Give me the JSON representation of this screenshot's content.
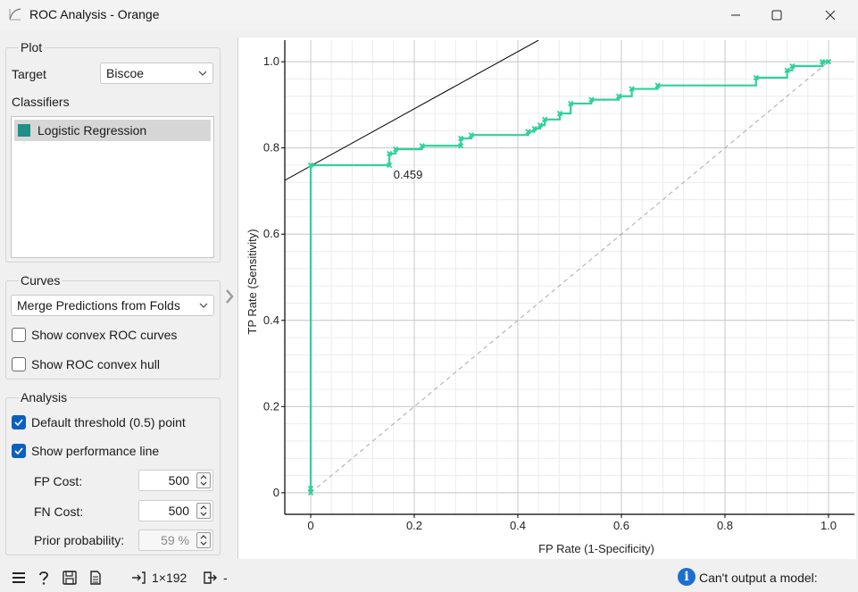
{
  "window": {
    "title": "ROC Analysis - Orange"
  },
  "plot_group": {
    "title": "Plot",
    "target_label": "Target",
    "target_value": "Biscoe",
    "classifiers_label": "Classifiers",
    "classifiers": [
      {
        "name": "Logistic Regression",
        "color": "#1f8f8a"
      }
    ]
  },
  "curves_group": {
    "title": "Curves",
    "merge_value": "Merge Predictions from Folds",
    "show_convex_label": "Show convex ROC curves",
    "show_convex_checked": false,
    "show_hull_label": "Show ROC convex hull",
    "show_hull_checked": false
  },
  "analysis_group": {
    "title": "Analysis",
    "default_threshold_label": "Default threshold (0.5) point",
    "default_threshold_checked": true,
    "performance_line_label": "Show performance line",
    "performance_line_checked": true,
    "fp_cost_label": "FP Cost:",
    "fp_cost_value": "500",
    "fn_cost_label": "FN Cost:",
    "fn_cost_value": "500",
    "prior_label": "Prior probability:",
    "prior_value": "59 %"
  },
  "status_bar": {
    "data_count": "1×192",
    "output_text": "-",
    "message": "Can't output a model:"
  },
  "chart_data": {
    "type": "line",
    "xlabel": "FP Rate (1-Specificity)",
    "ylabel": "TP Rate (Sensitivity)",
    "xlim": [
      -0.05,
      1.05
    ],
    "ylim": [
      -0.05,
      1.05
    ],
    "xticks": [
      "0",
      "0.2",
      "0.4",
      "0.6",
      "0.8",
      "1.0"
    ],
    "yticks": [
      "0",
      "0.2",
      "0.4",
      "0.6",
      "0.8",
      "1.0"
    ],
    "grid": true,
    "threshold_annotation": {
      "text": "0.459",
      "x": 0.16,
      "y": 0.735
    },
    "series": [
      {
        "color": "#2ed19b",
        "x": [
          0,
          0,
          0,
          0.152,
          0.152,
          0.164,
          0.164,
          0.215,
          0.215,
          0.29,
          0.29,
          0.31,
          0.31,
          0.42,
          0.42,
          0.432,
          0.432,
          0.443,
          0.443,
          0.452,
          0.452,
          0.481,
          0.481,
          0.502,
          0.502,
          0.542,
          0.542,
          0.595,
          0.595,
          0.62,
          0.62,
          0.67,
          0.67,
          0.86,
          0.86,
          0.92,
          0.92,
          0.93,
          0.93,
          0.988,
          0.988,
          1.0
        ],
        "y": [
          0,
          0.01,
          0.76,
          0.76,
          0.787,
          0.787,
          0.797,
          0.797,
          0.805,
          0.805,
          0.822,
          0.822,
          0.83,
          0.83,
          0.838,
          0.838,
          0.845,
          0.845,
          0.853,
          0.853,
          0.866,
          0.866,
          0.88,
          0.88,
          0.903,
          0.903,
          0.912,
          0.912,
          0.92,
          0.92,
          0.937,
          0.937,
          0.945,
          0.945,
          0.963,
          0.963,
          0.98,
          0.98,
          0.99,
          0.99,
          1.0,
          1.0
        ],
        "markers": [
          [
            0,
            0
          ],
          [
            0,
            0.01
          ],
          [
            0,
            0.76
          ],
          [
            0.152,
            0.76
          ],
          [
            0.152,
            0.787
          ],
          [
            0.164,
            0.797
          ],
          [
            0.215,
            0.805
          ],
          [
            0.29,
            0.805
          ],
          [
            0.29,
            0.822
          ],
          [
            0.31,
            0.83
          ],
          [
            0.42,
            0.838
          ],
          [
            0.432,
            0.845
          ],
          [
            0.443,
            0.853
          ],
          [
            0.452,
            0.866
          ],
          [
            0.481,
            0.88
          ],
          [
            0.502,
            0.903
          ],
          [
            0.542,
            0.912
          ],
          [
            0.595,
            0.92
          ],
          [
            0.62,
            0.937
          ],
          [
            0.67,
            0.945
          ],
          [
            0.86,
            0.963
          ],
          [
            0.92,
            0.98
          ],
          [
            0.93,
            0.99
          ],
          [
            0.988,
            1.0
          ],
          [
            1.0,
            1.0
          ]
        ]
      }
    ],
    "diagonal": {
      "color": "#aaaaaa",
      "x": [
        0,
        1
      ],
      "y": [
        0,
        1
      ]
    },
    "performance_line": {
      "color": "#000000",
      "x": [
        -0.05,
        0.44
      ],
      "y": [
        0.725,
        1.05
      ]
    },
    "threshold_point": {
      "x": 0,
      "y": 0.76
    }
  }
}
